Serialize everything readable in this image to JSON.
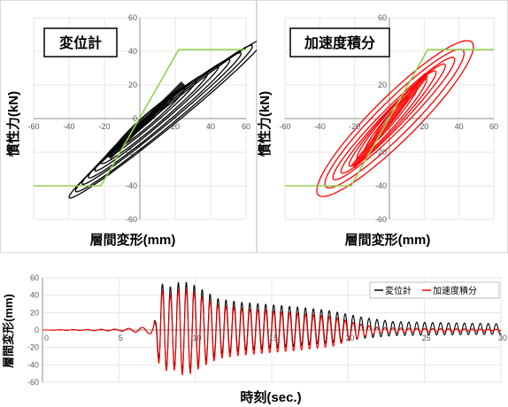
{
  "chart_data": [
    {
      "type": "scatter",
      "title": "変位計",
      "xlabel": "層間変形(mm)",
      "ylabel": "慣性力(kN)",
      "xlim": [
        -60,
        60
      ],
      "ylim": [
        -60,
        60
      ],
      "xticks": [
        -60,
        -40,
        -20,
        0,
        20,
        40,
        60
      ],
      "yticks": [
        -60,
        -40,
        -20,
        0,
        20,
        40,
        60
      ],
      "xtick_labels": [
        "-60",
        "-40",
        "-20",
        "0",
        "20",
        "40",
        "60"
      ],
      "ytick_labels": [
        "-60",
        "-40",
        "-20",
        "0",
        "20",
        "40",
        "60"
      ],
      "grid": true,
      "series": [
        {
          "color": "#000000",
          "loops": [
            {
              "amp": 55,
              "k": 0.85,
              "h": 7
            },
            {
              "amp": 50,
              "k": 0.86,
              "h": 7
            },
            {
              "amp": 45,
              "k": 0.86,
              "h": 6
            },
            {
              "amp": 40,
              "k": 0.87,
              "h": 6
            },
            {
              "amp": 35,
              "k": 0.88,
              "h": 5
            },
            {
              "amp": 30,
              "k": 0.88,
              "h": 5
            },
            {
              "amp": 25,
              "k": 0.89,
              "h": 4
            },
            {
              "amp": 20,
              "k": 0.9,
              "h": 4
            },
            {
              "amp": 15,
              "k": 0.9,
              "h": 3
            }
          ],
          "offset_x": 15,
          "offset_y": 0
        },
        {
          "color": "#92d050",
          "points": [
            [
              -60,
              -40
            ],
            [
              -22,
              -40
            ],
            [
              22,
              41
            ],
            [
              60,
              41
            ]
          ]
        }
      ]
    },
    {
      "type": "scatter",
      "title": "加速度積分",
      "xlabel": "層間変形(mm)",
      "ylabel": "慣性力(kN)",
      "xlim": [
        -60,
        60
      ],
      "ylim": [
        -60,
        60
      ],
      "xticks": [
        -60,
        -40,
        -20,
        0,
        20,
        40,
        60
      ],
      "yticks": [
        -60,
        -40,
        -20,
        0,
        20,
        40,
        60
      ],
      "xtick_labels": [
        "-60",
        "-40",
        "-20",
        "0",
        "20",
        "40",
        "60"
      ],
      "ytick_labels": [
        "-60",
        "-40",
        "-20",
        "0",
        "20",
        "40",
        "60"
      ],
      "grid": true,
      "series": [
        {
          "color": "#ff0000",
          "loops": [
            {
              "amp": 45,
              "k": 0.95,
              "h": 18
            },
            {
              "amp": 40,
              "k": 0.97,
              "h": 14
            },
            {
              "amp": 35,
              "k": 1.0,
              "h": 10
            },
            {
              "amp": 30,
              "k": 1.05,
              "h": 8
            },
            {
              "amp": 25,
              "k": 1.1,
              "h": 7
            },
            {
              "amp": 20,
              "k": 1.15,
              "h": 6
            },
            {
              "amp": 15,
              "k": 1.2,
              "h": 4
            },
            {
              "amp": 10,
              "k": 1.25,
              "h": 3
            }
          ],
          "offset_x": 4,
          "offset_y": 0
        },
        {
          "color": "#92d050",
          "points": [
            [
              -60,
              -40
            ],
            [
              -22,
              -40
            ],
            [
              22,
              41
            ],
            [
              60,
              41
            ]
          ]
        }
      ]
    },
    {
      "type": "line",
      "xlabel": "時刻(sec.)",
      "ylabel": "層間変形(mm)",
      "xlim": [
        0,
        30
      ],
      "ylim": [
        -60,
        60
      ],
      "xticks": [
        0,
        5,
        10,
        15,
        20,
        25,
        30
      ],
      "yticks": [
        -60,
        -40,
        -20,
        0,
        20,
        40,
        60
      ],
      "xtick_labels": [
        "0",
        "5",
        "10",
        "15",
        "20",
        "25",
        "30"
      ],
      "ytick_labels": [
        "-60",
        "-40",
        "-20",
        "0",
        "20",
        "40",
        "60"
      ],
      "grid": true,
      "legend": "top-right",
      "series": [
        {
          "name": "変位計",
          "color": "#000000",
          "envelope": [
            [
              0,
              0
            ],
            [
              5,
              1
            ],
            [
              6.5,
              3
            ],
            [
              7.0,
              4
            ],
            [
              7.4,
              10
            ],
            [
              7.7,
              50
            ],
            [
              8.5,
              45
            ],
            [
              9.0,
              52
            ],
            [
              9.7,
              50
            ],
            [
              10.5,
              42
            ],
            [
              11.5,
              32
            ],
            [
              13,
              28
            ],
            [
              15,
              25
            ],
            [
              17,
              22
            ],
            [
              19,
              18
            ],
            [
              21,
              12
            ],
            [
              23,
              8
            ],
            [
              26,
              7
            ],
            [
              30,
              6
            ]
          ],
          "period": 0.52,
          "offset": 4
        },
        {
          "name": "加速度積分",
          "color": "#ff0000",
          "envelope": [
            [
              0,
              0
            ],
            [
              5,
              1
            ],
            [
              6.5,
              3
            ],
            [
              7.0,
              4
            ],
            [
              7.4,
              12
            ],
            [
              7.7,
              48
            ],
            [
              8.5,
              42
            ],
            [
              9.0,
              50
            ],
            [
              9.7,
              48
            ],
            [
              10.5,
              40
            ],
            [
              11.5,
              31
            ],
            [
              13,
              27
            ],
            [
              15,
              24
            ],
            [
              17,
              21
            ],
            [
              19,
              17
            ],
            [
              20.5,
              9
            ],
            [
              22,
              3
            ],
            [
              25,
              2
            ],
            [
              30,
              1
            ]
          ],
          "period": 0.52,
          "offset": -2
        }
      ]
    }
  ]
}
